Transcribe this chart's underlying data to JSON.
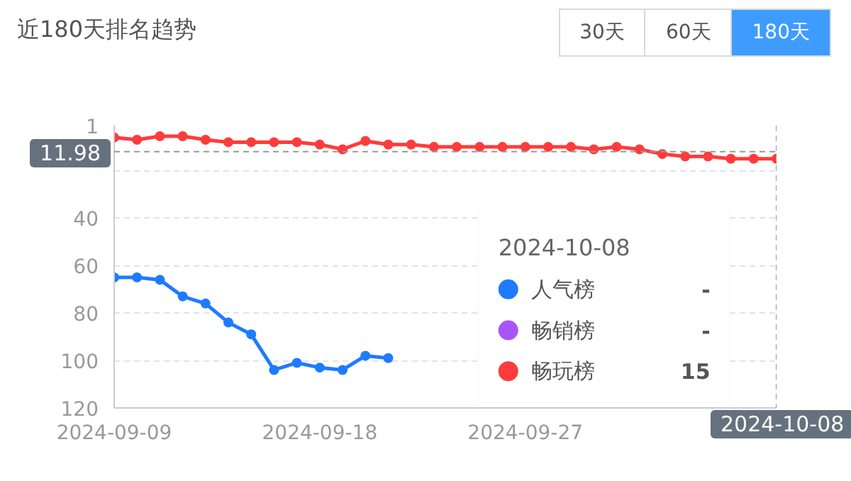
{
  "chart_data": {
    "type": "line",
    "title": "近180天排名趋势",
    "x": [
      "2024-09-09",
      "2024-09-10",
      "2024-09-11",
      "2024-09-12",
      "2024-09-13",
      "2024-09-14",
      "2024-09-15",
      "2024-09-16",
      "2024-09-17",
      "2024-09-18",
      "2024-09-19",
      "2024-09-20",
      "2024-09-21",
      "2024-09-22",
      "2024-09-23",
      "2024-09-24",
      "2024-09-25",
      "2024-09-26",
      "2024-09-27",
      "2024-09-28",
      "2024-09-29",
      "2024-09-30",
      "2024-10-01",
      "2024-10-02",
      "2024-10-03",
      "2024-10-04",
      "2024-10-05",
      "2024-10-06",
      "2024-10-07",
      "2024-10-08"
    ],
    "series": [
      {
        "name": "人气榜",
        "color": "#1e7bff",
        "values": [
          65,
          65,
          66,
          73,
          76,
          84,
          89,
          104,
          101,
          103,
          104,
          98,
          99,
          null,
          null,
          null,
          null,
          null,
          null,
          null,
          null,
          null,
          null,
          null,
          null,
          null,
          null,
          null,
          null,
          null
        ]
      },
      {
        "name": "畅销榜",
        "color": "#a855f7",
        "values": [
          null,
          null,
          null,
          null,
          null,
          null,
          null,
          null,
          null,
          null,
          null,
          null,
          null,
          null,
          null,
          null,
          null,
          null,
          null,
          null,
          null,
          null,
          null,
          null,
          null,
          null,
          null,
          null,
          null,
          null
        ]
      },
      {
        "name": "畅玩榜",
        "color": "#ff3b3b",
        "values": [
          6,
          7,
          5.5,
          5.5,
          7,
          8,
          8,
          8,
          8,
          9,
          11,
          7.5,
          9,
          9,
          10,
          10,
          10,
          10,
          10,
          10,
          10,
          11,
          10,
          11,
          13,
          14,
          14,
          15,
          15,
          15
        ]
      }
    ],
    "ylim": [
      120,
      1
    ],
    "yticks": [
      1,
      {
        "value": 20,
        "label": null
      },
      40,
      60,
      80,
      100,
      120
    ],
    "xlim": [
      "2024-09-09",
      "2024-10-08"
    ],
    "xticks": [
      {
        "value": "2024-09-09",
        "label": "2024-09-09"
      },
      {
        "value": "2024-09-18",
        "label": "2024-09-18"
      },
      {
        "value": "2024-09-27",
        "label": "2024-09-27"
      },
      {
        "value": "2024-10-08",
        "label": null
      }
    ],
    "ref_lines": [
      {
        "axis": "y",
        "value": 11.98,
        "label": "11.98"
      },
      {
        "axis": "x",
        "value": "2024-10-08",
        "label": "2024-10-08"
      }
    ],
    "annotations": [
      "30天",
      "60天",
      "180天",
      "2024-10-08",
      "-",
      "-",
      "15"
    ],
    "grid": "y",
    "marker": "circle",
    "line_style": "solid",
    "legend": "bottom right"
  }
}
